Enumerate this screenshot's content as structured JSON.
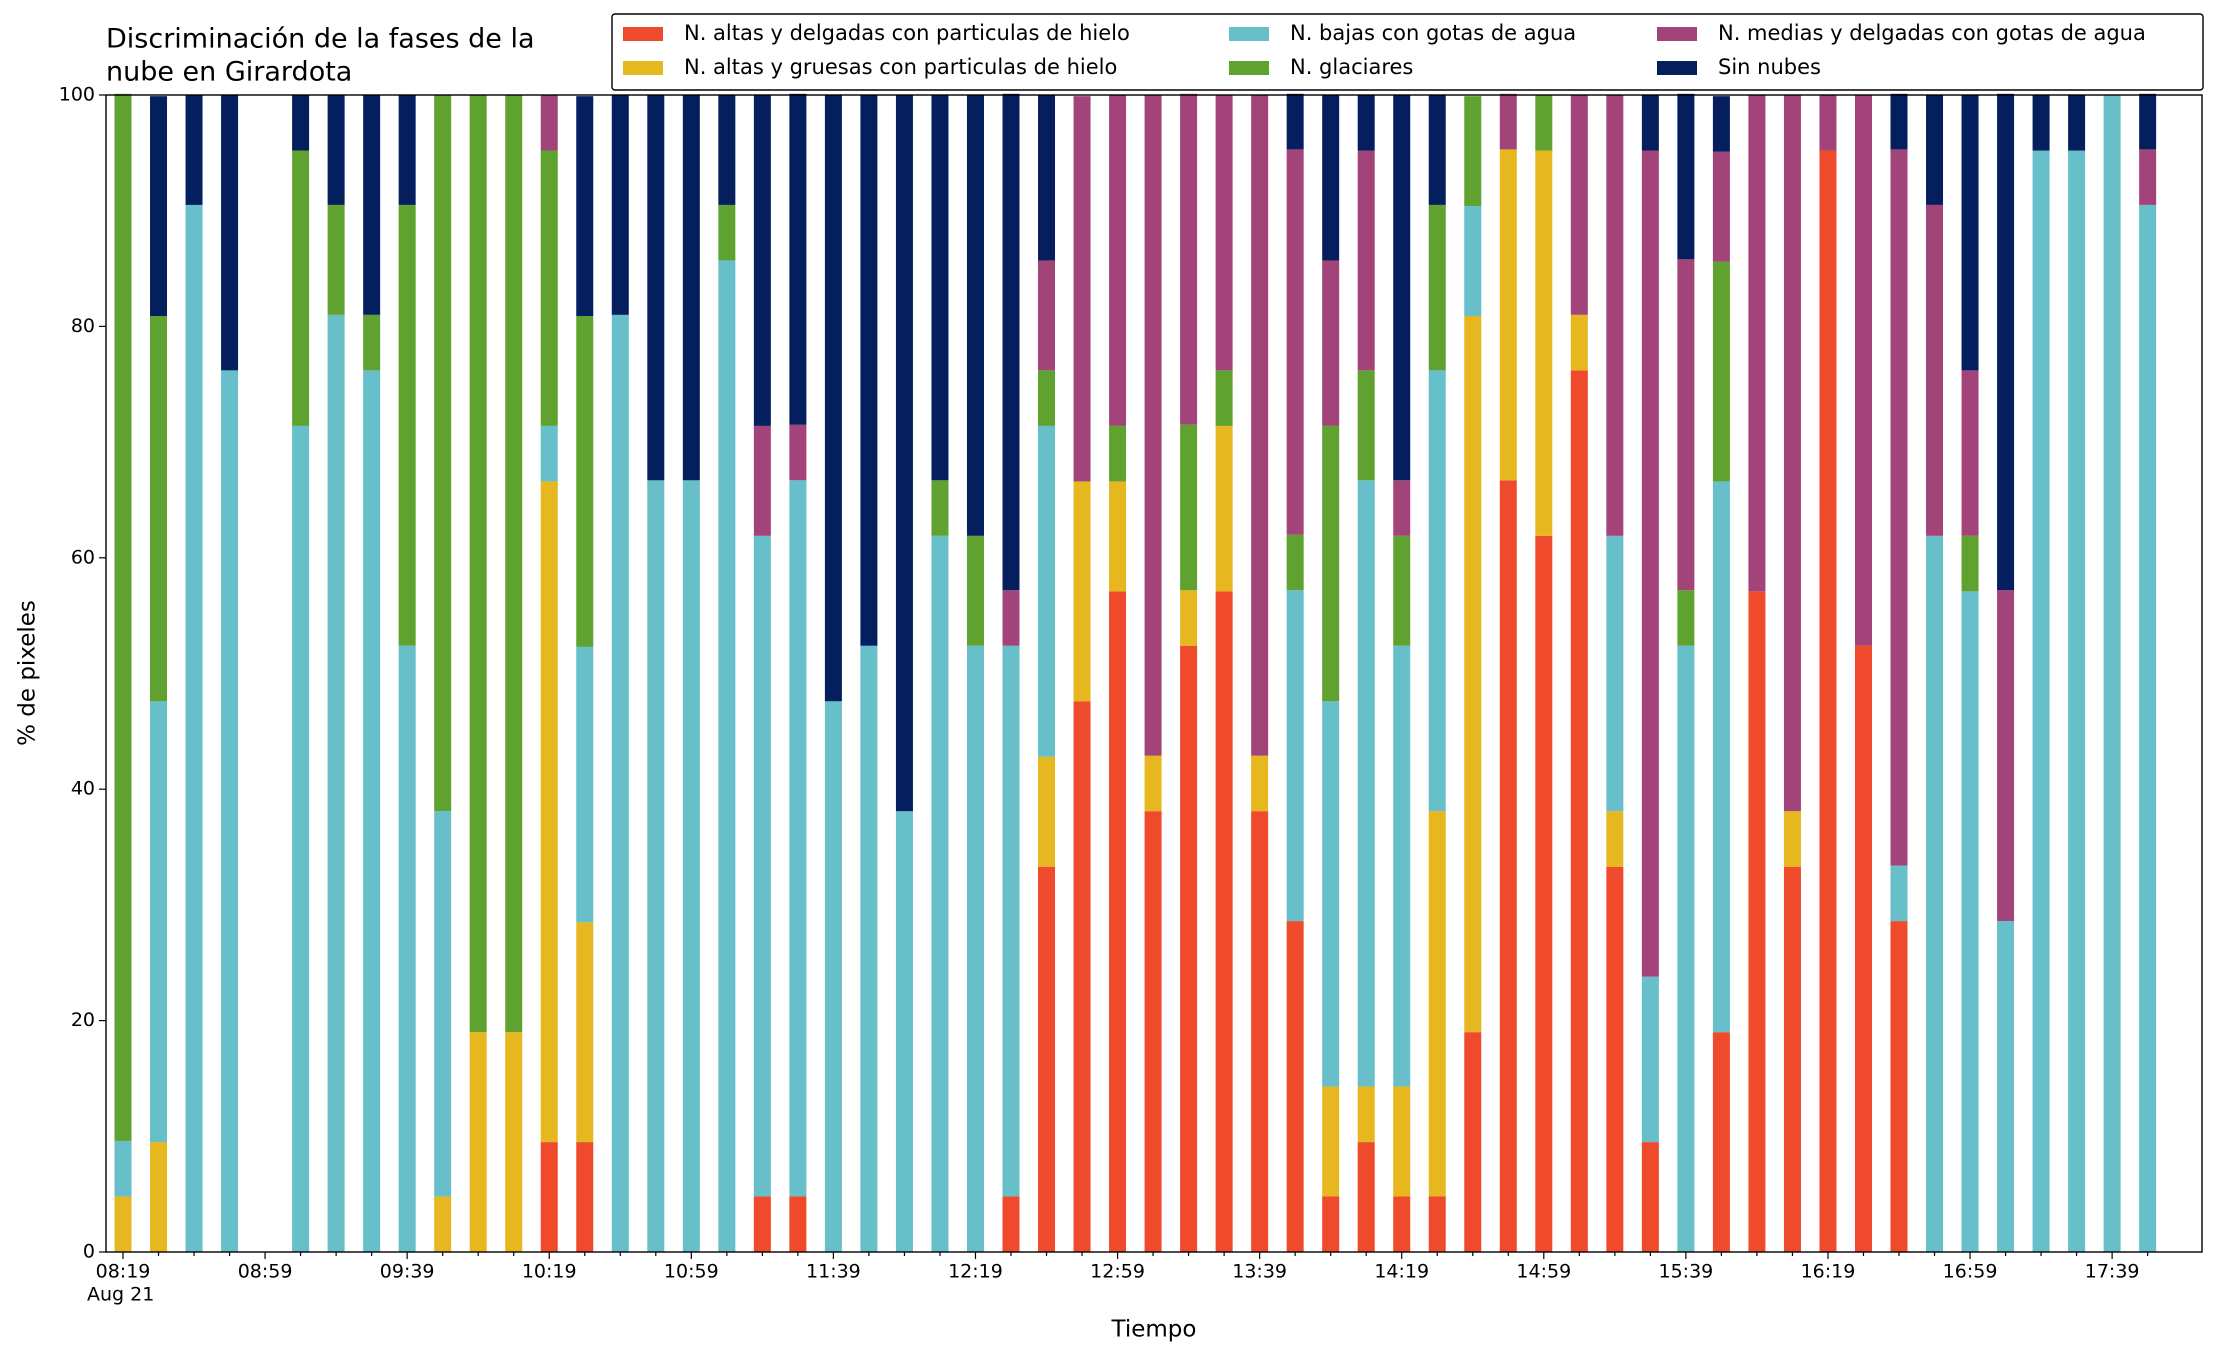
{
  "chart_data": {
    "type": "stacked_bar",
    "title": [
      "Discriminación de la fases de la",
      "nube en Girardota"
    ],
    "xlabel": "Tiempo",
    "ylabel": "% de pixeles",
    "x_date_label": "Aug 21",
    "legend": "top-right",
    "categories": [
      "08:19",
      null,
      null,
      null,
      "08:59",
      null,
      null,
      null,
      "09:39",
      null,
      null,
      null,
      "10:19",
      null,
      null,
      null,
      "10:59",
      null,
      null,
      null,
      "11:39",
      null,
      null,
      null,
      "12:19",
      null,
      null,
      null,
      "12:59",
      null,
      null,
      null,
      "13:39",
      null,
      null,
      null,
      "14:19",
      null,
      null,
      null,
      "14:59",
      null,
      null,
      null,
      "15:39",
      null,
      null,
      null,
      "16:19",
      null,
      null,
      null,
      "16:59",
      null,
      null,
      null,
      "17:39",
      null
    ],
    "ylim": [
      0,
      100
    ],
    "yticks": [
      0,
      20,
      40,
      60,
      80,
      100
    ],
    "series": [
      {
        "name": "N. altas y delgadas con particulas de hielo",
        "color": "#f04a2c",
        "values": [
          0,
          0,
          0,
          0,
          0,
          0,
          0,
          0,
          0,
          0,
          0,
          0,
          9.5,
          9.5,
          0,
          0,
          0,
          0,
          4.8,
          4.8,
          0,
          0,
          0,
          0,
          0,
          4.8,
          33.3,
          47.6,
          57.1,
          38.1,
          52.4,
          57.1,
          38.1,
          28.6,
          4.8,
          9.5,
          4.8,
          4.8,
          19,
          66.7,
          61.9,
          76.2,
          33.3,
          9.5,
          0,
          19,
          57.1,
          33.3,
          95.2,
          52.4,
          28.6,
          0,
          0,
          0,
          0,
          0,
          0,
          0
        ]
      },
      {
        "name": "N. altas y gruesas con particulas de hielo",
        "color": "#e6b71e",
        "values": [
          4.8,
          9.5,
          0,
          0,
          0,
          0,
          0,
          0,
          0,
          4.8,
          19,
          19,
          57.1,
          19,
          0,
          0,
          0,
          0,
          0,
          0,
          0,
          0,
          0,
          0,
          0,
          0,
          9.5,
          19,
          9.5,
          4.8,
          4.8,
          14.3,
          4.8,
          0,
          9.5,
          4.8,
          9.5,
          33.3,
          61.9,
          28.6,
          33.3,
          4.8,
          4.8,
          0,
          0,
          0,
          0,
          4.8,
          0,
          0,
          0,
          0,
          0,
          0,
          0,
          0,
          0,
          0
        ]
      },
      {
        "name": "N. bajas con gotas de agua",
        "color": "#67bfca",
        "values": [
          4.8,
          38.1,
          90.5,
          76.2,
          0,
          71.4,
          81,
          76.2,
          52.4,
          33.3,
          0,
          0,
          4.8,
          23.8,
          81,
          66.7,
          66.7,
          85.7,
          57.1,
          61.9,
          47.6,
          52.4,
          38.1,
          61.9,
          52.4,
          47.6,
          28.6,
          0,
          0,
          0,
          0,
          0,
          0,
          28.6,
          33.3,
          52.4,
          38.1,
          38.1,
          9.5,
          0,
          0,
          0,
          23.8,
          14.3,
          52.4,
          47.6,
          0,
          0,
          0,
          0,
          4.8,
          61.9,
          57.1,
          28.6,
          95.2,
          95.2,
          100,
          90.5
        ]
      },
      {
        "name": "N. glaciares",
        "color": "#5fa22f",
        "values": [
          90.5,
          33.3,
          0,
          0,
          0,
          23.8,
          9.5,
          4.8,
          38.1,
          61.9,
          81,
          81,
          23.8,
          28.6,
          0,
          0,
          0,
          4.8,
          0,
          0,
          0,
          0,
          0,
          4.8,
          9.5,
          0,
          4.8,
          0,
          4.8,
          0,
          14.3,
          4.8,
          0,
          4.8,
          23.8,
          9.5,
          9.5,
          14.3,
          9.5,
          0,
          4.8,
          0,
          0,
          0,
          4.8,
          19,
          0,
          0,
          0,
          0,
          0,
          0,
          4.8,
          0,
          0,
          0,
          0,
          0
        ]
      },
      {
        "name": "N. medias y delgadas con gotas de agua",
        "color": "#a24379",
        "values": [
          0,
          0,
          0,
          0,
          0,
          0,
          0,
          0,
          0,
          0,
          0,
          0,
          4.8,
          0,
          0,
          0,
          0,
          0,
          9.5,
          4.8,
          0,
          0,
          0,
          0,
          0,
          4.8,
          9.5,
          33.3,
          28.6,
          57.1,
          28.6,
          23.8,
          57.1,
          33.3,
          14.3,
          19,
          4.8,
          0,
          0,
          4.8,
          0,
          19,
          38.1,
          71.4,
          28.6,
          9.5,
          42.9,
          61.9,
          4.8,
          47.6,
          61.9,
          28.6,
          14.3,
          28.6,
          0,
          0,
          0,
          4.8
        ]
      },
      {
        "name": "Sin nubes",
        "color": "#041e5e",
        "values": [
          0,
          19,
          9.5,
          23.8,
          0,
          4.8,
          9.5,
          19,
          9.5,
          0,
          0,
          0,
          0,
          19,
          19,
          33.3,
          33.3,
          9.5,
          28.6,
          28.6,
          52.4,
          47.6,
          61.9,
          33.3,
          38.1,
          42.9,
          14.3,
          0,
          0,
          0,
          0,
          0,
          0,
          4.8,
          14.3,
          4.8,
          33.3,
          9.5,
          0,
          0,
          0,
          0,
          0,
          4.8,
          14.3,
          4.8,
          0,
          0,
          0,
          0,
          4.8,
          9.5,
          23.8,
          42.9,
          4.8,
          4.8,
          0,
          4.8
        ]
      }
    ]
  }
}
